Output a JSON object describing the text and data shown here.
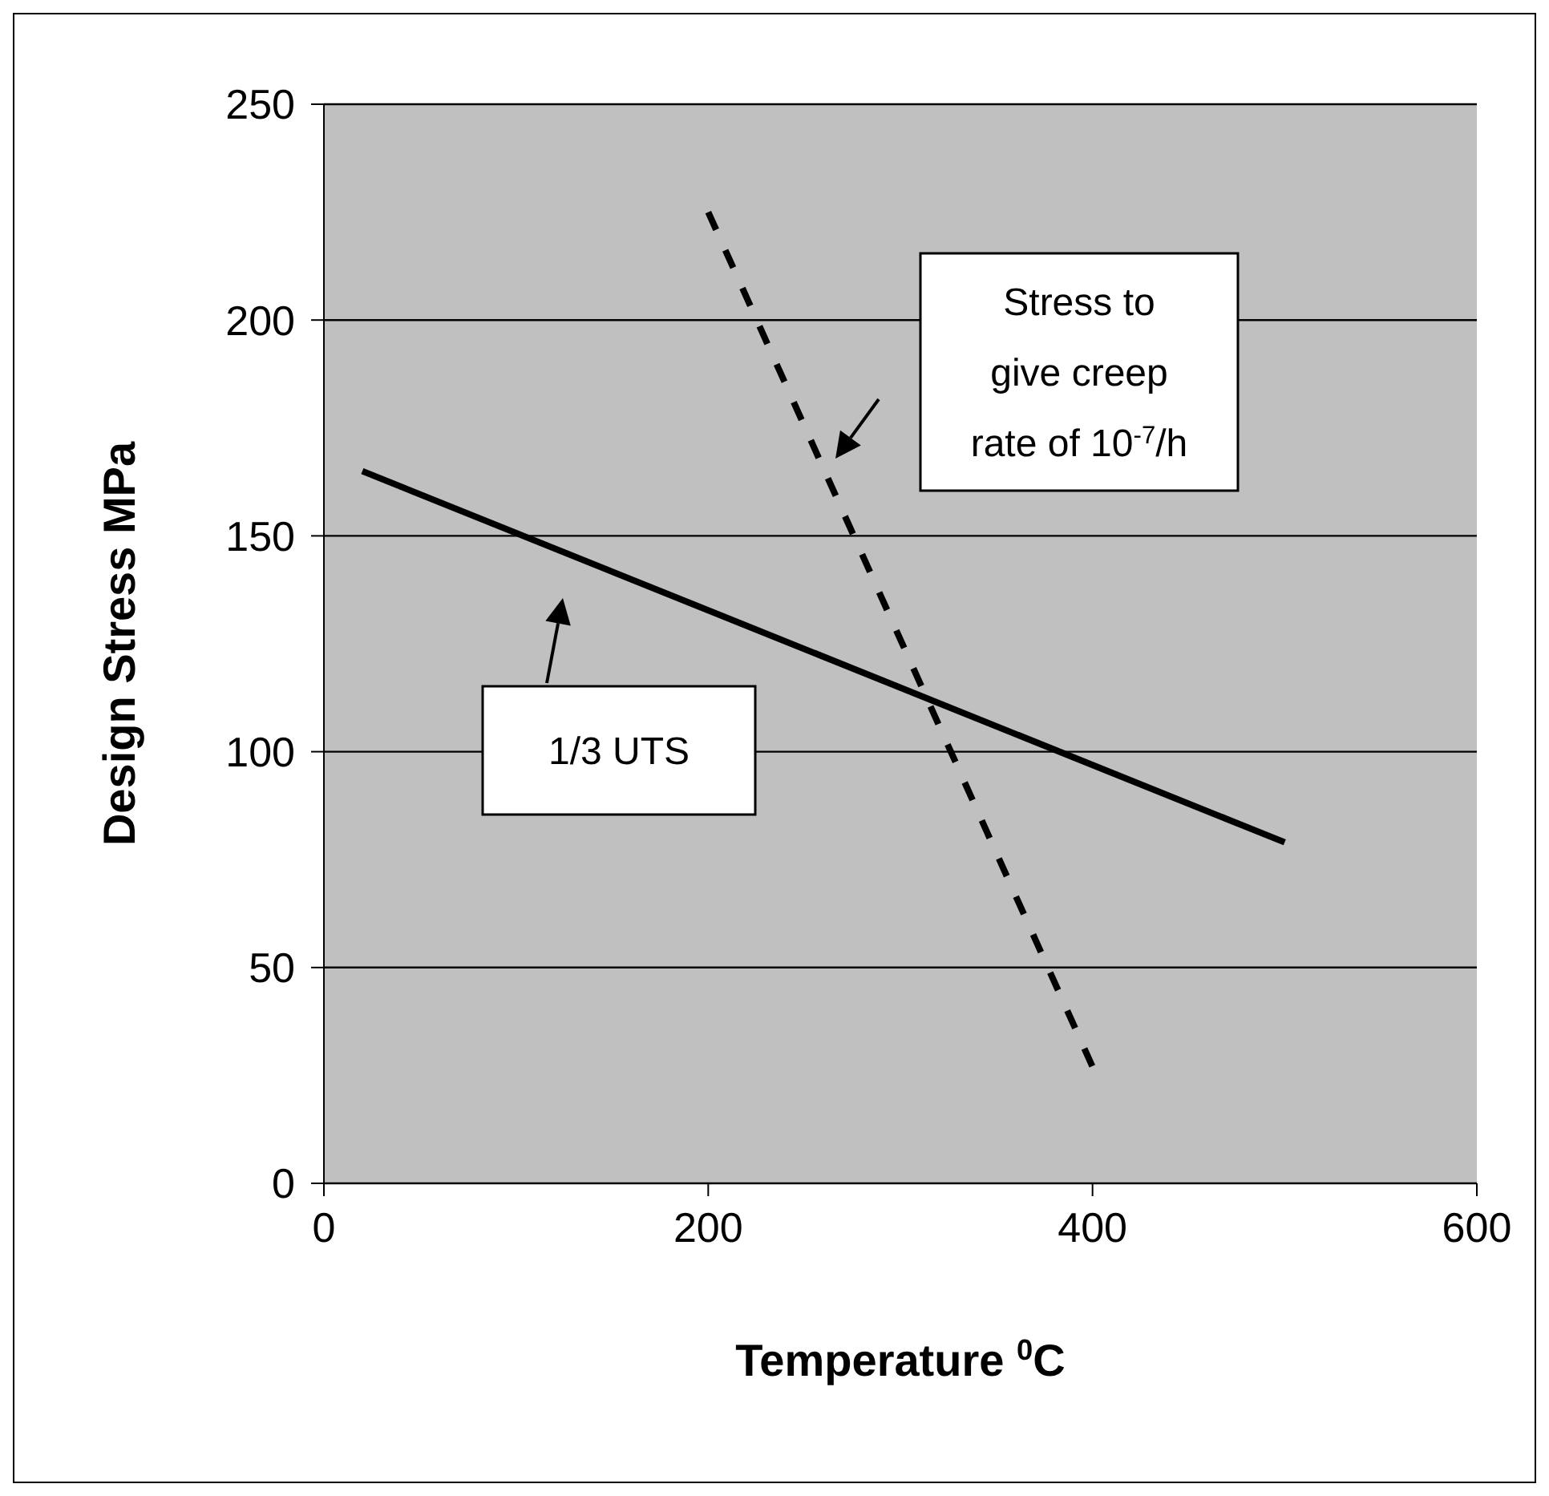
{
  "chart_data": {
    "type": "line",
    "xlabel": "Temperature $^{0}$C",
    "ylabel": "Design Stress  MPa",
    "series": [
      {
        "color": "#000000",
        "line_style": "solid",
        "x": [
          20,
          500
        ],
        "values": [
          165,
          79
        ]
      },
      {
        "color": "#000000",
        "line_style": "dashed",
        "x": [
          200,
          400
        ],
        "values": [
          225,
          27
        ]
      }
    ],
    "xlim": [
      0,
      600
    ],
    "xticks": [
      0,
      200,
      400,
      600
    ],
    "ylim": [
      0,
      250
    ],
    "yticks": [
      0,
      50,
      100,
      150,
      200,
      250
    ],
    "grid": "y",
    "marker": "none",
    "annotations": [
      "Stress to give creep rate of 10$^{-7}$/h",
      "1/3 UTS"
    ]
  }
}
